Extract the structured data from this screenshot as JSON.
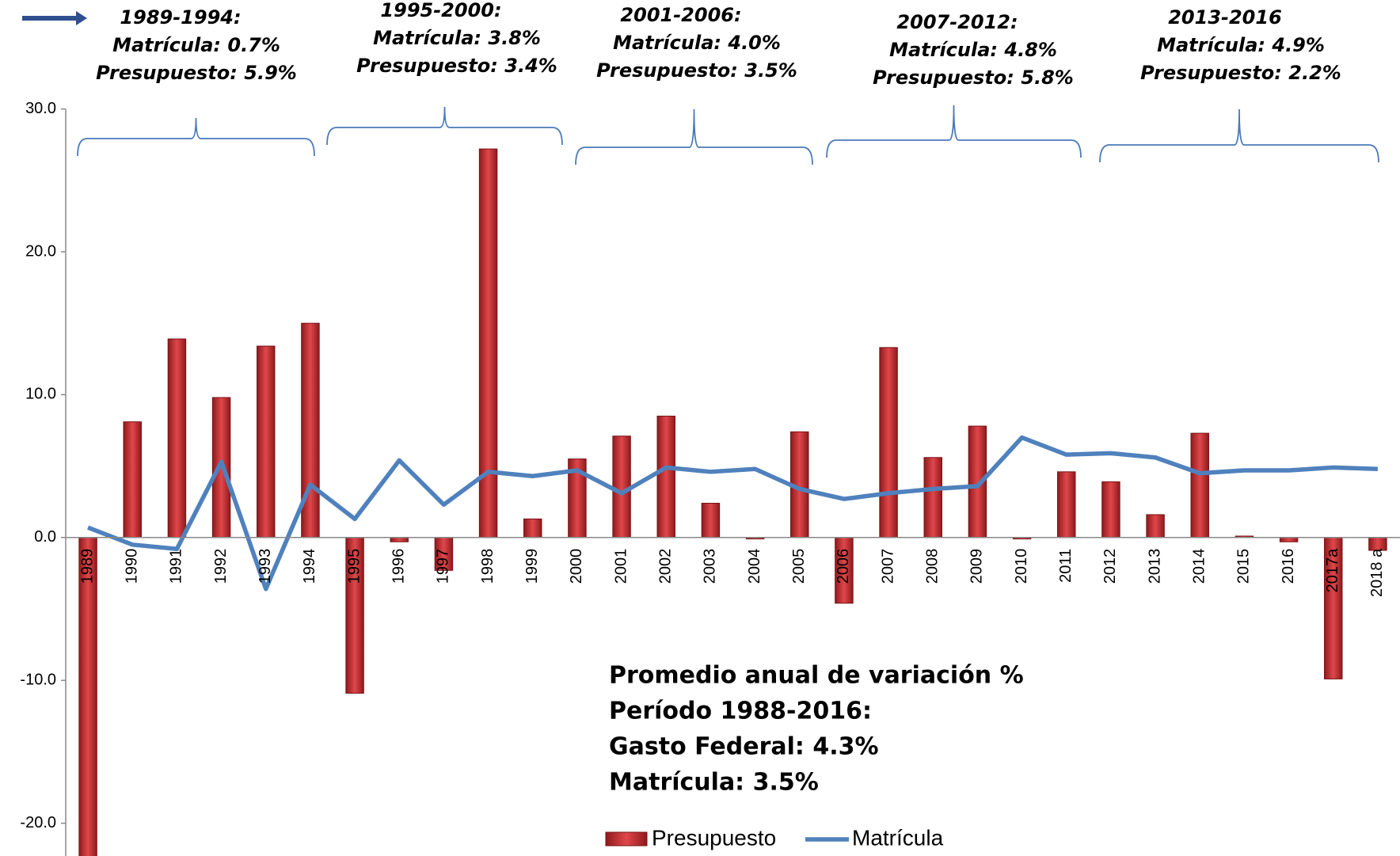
{
  "chart_data": {
    "type": "bar_line",
    "categories": [
      "1989",
      "1990",
      "1991",
      "1992",
      "1993",
      "1994",
      "1995",
      "1996",
      "1997",
      "1998",
      "1999",
      "2000",
      "2001",
      "2002",
      "2003",
      "2004",
      "2005",
      "2006",
      "2007",
      "2008",
      "2009",
      "2010",
      "2011",
      "2012",
      "2013",
      "2014",
      "2015",
      "2016",
      "2017a",
      "2018 a"
    ],
    "series": [
      {
        "name": "Presupuesto",
        "type": "bar",
        "color": "#c0282d",
        "values": [
          -25,
          8.1,
          13.9,
          9.8,
          13.4,
          15.0,
          -10.9,
          -0.3,
          -2.3,
          27.2,
          1.3,
          5.5,
          7.1,
          8.5,
          2.4,
          -0.1,
          7.4,
          -4.6,
          13.3,
          5.6,
          7.8,
          -0.1,
          4.6,
          3.9,
          1.6,
          7.3,
          0.1,
          -0.3,
          -9.9,
          -0.9
        ]
      },
      {
        "name": "Matrícula",
        "type": "line",
        "color": "#4f81bd",
        "values": [
          0.7,
          -0.5,
          -0.8,
          5.3,
          -3.6,
          3.7,
          1.3,
          5.4,
          2.3,
          4.6,
          4.3,
          4.7,
          3.1,
          4.9,
          4.6,
          4.8,
          3.4,
          2.7,
          3.1,
          3.4,
          3.6,
          7.0,
          5.8,
          5.9,
          5.6,
          4.5,
          4.7,
          4.7,
          4.9,
          4.8
        ]
      }
    ],
    "ylim": [
      -22.3,
      30
    ],
    "yticks": [
      {
        "value": 30,
        "label": "30.0"
      },
      {
        "value": 20,
        "label": "20.0"
      },
      {
        "value": 10,
        "label": "10.0"
      },
      {
        "value": 0,
        "label": "0.0"
      },
      {
        "value": -10,
        "label": "-10.0"
      },
      {
        "value": -20,
        "label": "-20.0"
      }
    ],
    "annotations": [
      {
        "period": "1989-1994:",
        "matricula": "Matrícula: 0.7%",
        "presupuesto": "Presupuesto: 5.9%"
      },
      {
        "period": "1995-2000:",
        "matricula": "Matrícula: 3.8%",
        "presupuesto": "Presupuesto:  3.4%"
      },
      {
        "period": "2001-2006:",
        "matricula": "Matrícula: 4.0%",
        "presupuesto": "Presupuesto: 3.5%"
      },
      {
        "period": "2007-2012:",
        "matricula": "Matrícula: 4.8%",
        "presupuesto": "Presupuesto:  5.8%"
      },
      {
        "period": "2013-2016",
        "matricula": "Matrícula: 4.9%",
        "presupuesto": "Presupuesto: 2.2%"
      }
    ],
    "summary": [
      "Promedio anual de variación %",
      "Período 1988-2016:",
      "Gasto Federal: 4.3%",
      "Matrícula:  3.5%"
    ]
  }
}
